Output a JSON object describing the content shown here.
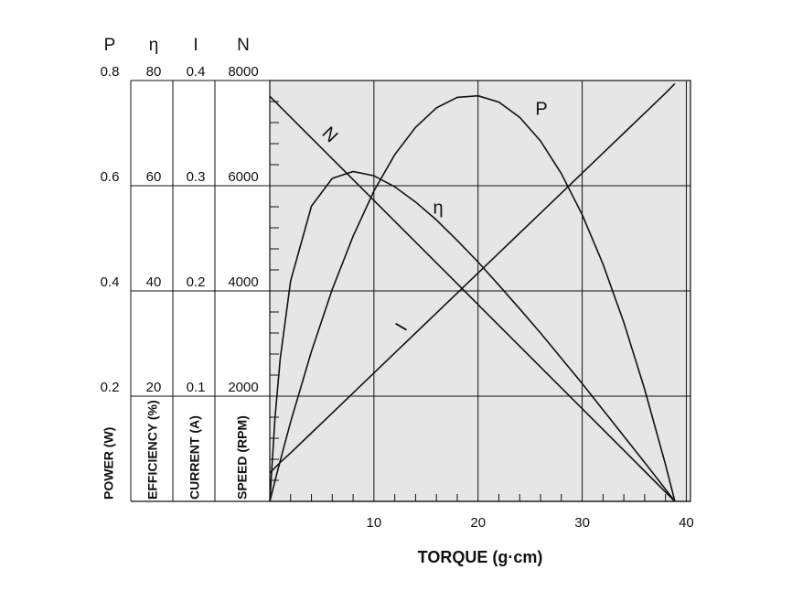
{
  "chart_data": {
    "type": "line",
    "x_label": "TORQUE (g·cm)",
    "xlim": [
      0,
      40.4
    ],
    "xticks": [
      10,
      20,
      30,
      40
    ],
    "minor_xticks": [
      2,
      4,
      6,
      8,
      12,
      14,
      16,
      18,
      22,
      24,
      26,
      28,
      32,
      34,
      36,
      38
    ],
    "minor_yticks": [
      0.04,
      0.08,
      0.12,
      0.16,
      0.24,
      0.28,
      0.32,
      0.36,
      0.44,
      0.48,
      0.52,
      0.56,
      0.64,
      0.68,
      0.72,
      0.76
    ],
    "grid": true,
    "plot_background": "#e6e6e6",
    "axes": [
      {
        "symbol": "P",
        "label": "POWER (W)",
        "ylim": [
          0,
          0.8
        ],
        "yticks": [
          0.2,
          0.4,
          0.6,
          0.8
        ]
      },
      {
        "symbol": "η",
        "label": "EFFICIENCY (%)",
        "ylim": [
          0,
          80
        ],
        "yticks": [
          20,
          40,
          60,
          80
        ]
      },
      {
        "symbol": "I",
        "label": "CURRENT (A)",
        "ylim": [
          0,
          0.4
        ],
        "yticks": [
          0.1,
          0.2,
          0.3,
          0.4
        ]
      },
      {
        "symbol": "N",
        "label": "SPEED (RPM)",
        "ylim": [
          0,
          8000
        ],
        "yticks": [
          2000,
          4000,
          6000,
          8000
        ]
      }
    ],
    "x": [
      0,
      0.5,
      1,
      2,
      4,
      6,
      8,
      10,
      12,
      14,
      16,
      18,
      20,
      22,
      24,
      26,
      28,
      30,
      32,
      34,
      36,
      38,
      38.9
    ],
    "series": [
      {
        "name": "P",
        "axis": 0,
        "color": "#111111",
        "values": [
          0,
          0.039,
          0.077,
          0.151,
          0.285,
          0.403,
          0.504,
          0.59,
          0.659,
          0.711,
          0.748,
          0.768,
          0.771,
          0.759,
          0.73,
          0.685,
          0.623,
          0.545,
          0.451,
          0.34,
          0.213,
          0.07,
          0
        ]
      },
      {
        "name": "η",
        "axis": 1,
        "color": "#111111",
        "values": [
          0,
          15.9,
          27.1,
          41.9,
          56.1,
          61.4,
          62.7,
          61.9,
          59.8,
          56.9,
          53.5,
          49.6,
          45.5,
          41.1,
          36.6,
          32.0,
          27.2,
          22.4,
          17.4,
          12.4,
          7.4,
          2.3,
          0
        ]
      },
      {
        "name": "I",
        "axis": 2,
        "color": "#111111",
        "values": [
          0.027,
          0.032,
          0.037,
          0.046,
          0.065,
          0.084,
          0.103,
          0.122,
          0.141,
          0.16,
          0.179,
          0.198,
          0.217,
          0.236,
          0.255,
          0.274,
          0.293,
          0.312,
          0.331,
          0.35,
          0.369,
          0.388,
          0.397
        ]
      },
      {
        "name": "N",
        "axis": 3,
        "color": "#111111",
        "values": [
          7700,
          7601,
          7502,
          7304,
          6908,
          6512,
          6117,
          5721,
          5325,
          4929,
          4533,
          4137,
          3741,
          3345,
          2949,
          2553,
          2157,
          1762,
          1366,
          970,
          574,
          178,
          0
        ]
      }
    ]
  }
}
